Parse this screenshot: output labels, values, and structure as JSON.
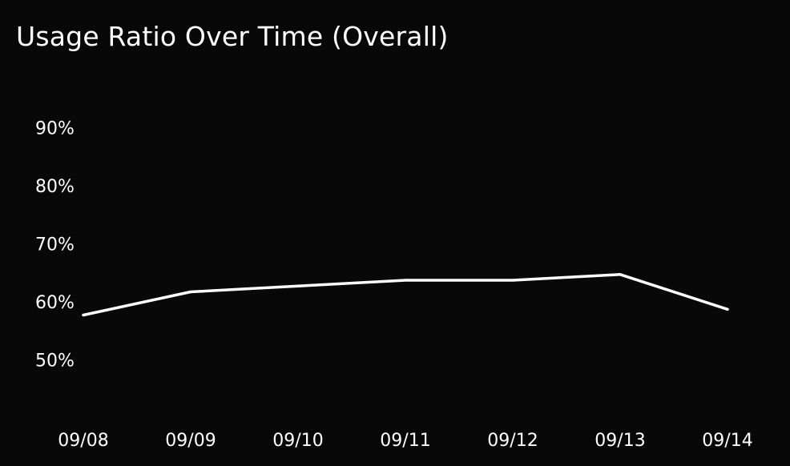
{
  "chart_data": {
    "type": "line",
    "title": "Usage Ratio Over Time (Overall)",
    "xlabel": "",
    "ylabel": "",
    "categories": [
      "09/08",
      "09/09",
      "09/10",
      "09/11",
      "09/12",
      "09/13",
      "09/14"
    ],
    "series": [
      {
        "values": [
          58,
          62,
          63,
          64,
          64,
          65,
          59
        ],
        "color": "#ffffff"
      }
    ],
    "yticks": [
      50,
      60,
      70,
      80,
      90
    ],
    "ytick_labels": [
      "50%",
      "60%",
      "70%",
      "80%",
      "90%"
    ],
    "ylim": [
      45,
      95
    ],
    "grid": false,
    "legend": "none",
    "background": "#080808"
  }
}
